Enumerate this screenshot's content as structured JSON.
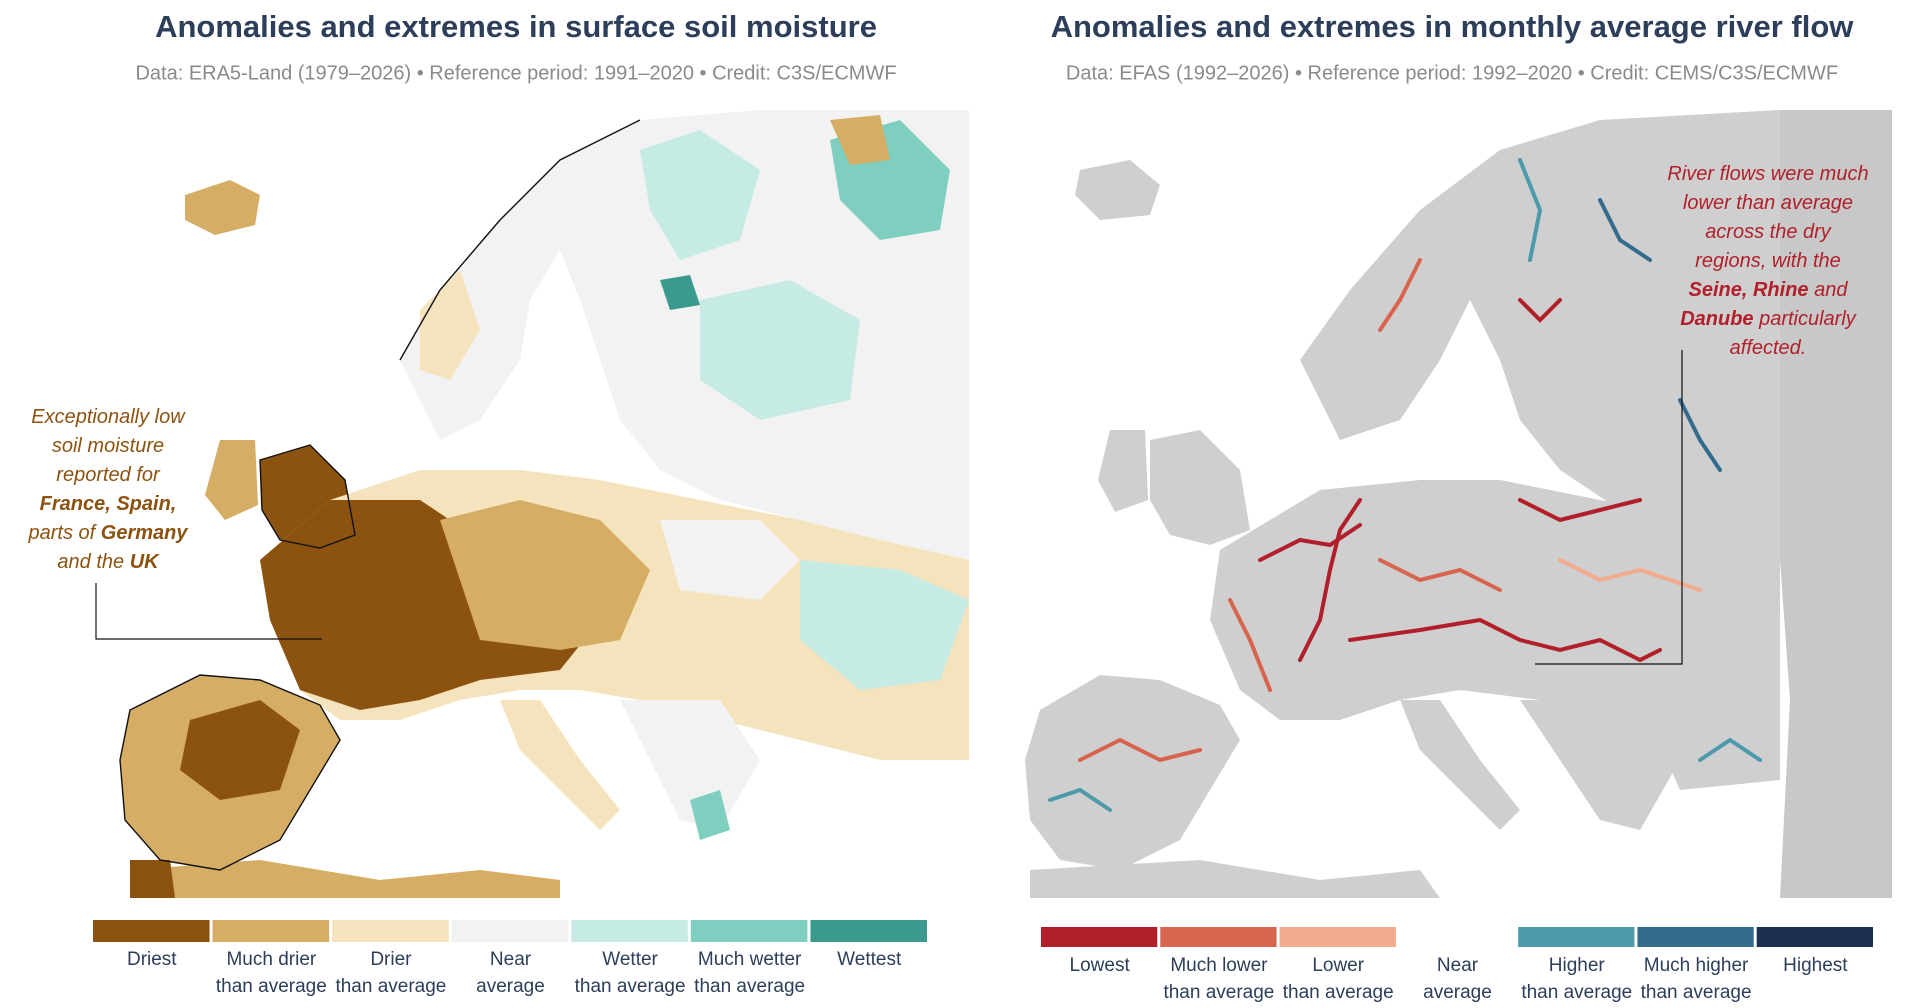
{
  "left_panel": {
    "title": "Anomalies and extremes in surface soil moisture",
    "subtitle": "Data: ERA5-Land (1979–2026) • Reference period: 1991–2020 • Credit: C3S/ECMWF",
    "annotation": {
      "color": "#8c5310",
      "lines": [
        [
          {
            "text": "Exceptionally low"
          }
        ],
        [
          {
            "text": "soil moisture"
          }
        ],
        [
          {
            "text": "reported for"
          }
        ],
        [
          {
            "text": "France, Spain,",
            "bold": true
          }
        ],
        [
          {
            "text": "parts of "
          },
          {
            "text": "Germany",
            "bold": true
          }
        ],
        [
          {
            "text": "and the "
          },
          {
            "text": "UK",
            "bold": true
          }
        ]
      ]
    },
    "legend": [
      {
        "lines": [
          "Driest"
        ],
        "color": "#8c5310"
      },
      {
        "lines": [
          "Much drier",
          "than average"
        ],
        "color": "#d5ad64"
      },
      {
        "lines": [
          "Drier",
          "than average"
        ],
        "color": "#f4e3bc"
      },
      {
        "lines": [
          "Near",
          "average"
        ],
        "color": "#f2f2f2"
      },
      {
        "lines": [
          "Wetter",
          "than average"
        ],
        "color": "#c6ebe4"
      },
      {
        "lines": [
          "Much wetter",
          "than average"
        ],
        "color": "#7fcfc0"
      },
      {
        "lines": [
          "Wettest"
        ],
        "color": "#3a9a8e"
      }
    ]
  },
  "right_panel": {
    "title": "Anomalies and extremes in monthly average river flow",
    "subtitle": "Data: EFAS (1992–2026) • Reference period: 1992–2020 • Credit: CEMS/C3S/ECMWF",
    "annotation": {
      "color": "#b01f2a",
      "lines": [
        [
          {
            "text": "River flows were much"
          }
        ],
        [
          {
            "text": "lower than average"
          }
        ],
        [
          {
            "text": "across the dry"
          }
        ],
        [
          {
            "text": "regions, with the"
          }
        ],
        [
          {
            "text": "Seine, Rhine",
            "bold": true
          },
          {
            "text": " and"
          }
        ],
        [
          {
            "text": "Danube",
            "bold": true
          },
          {
            "text": " particularly"
          }
        ],
        [
          {
            "text": "affected."
          }
        ]
      ]
    },
    "legend": [
      {
        "lines": [
          "Lowest"
        ],
        "color": "#b01f2a"
      },
      {
        "lines": [
          "Much lower",
          "than average"
        ],
        "color": "#d8634e"
      },
      {
        "lines": [
          "Lower",
          "than average"
        ],
        "color": "#f2ab8c"
      },
      {
        "lines": [
          "Near",
          "average"
        ]
      },
      {
        "lines": [
          "Higher",
          "than average"
        ],
        "color": "#4d9aaa"
      },
      {
        "lines": [
          "Much higher",
          "than average"
        ],
        "color": "#336c8c"
      },
      {
        "lines": [
          "Highest"
        ],
        "color": "#1c2f4e"
      }
    ]
  }
}
